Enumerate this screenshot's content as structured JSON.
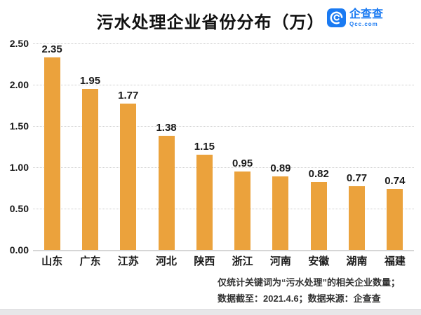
{
  "header": {
    "title": "污水处理企业省份分布（万）",
    "logo": {
      "name": "企查查",
      "domain": "Qcc.com"
    }
  },
  "chart_data": {
    "type": "bar",
    "title": "污水处理企业省份分布（万）",
    "categories": [
      "山东",
      "广东",
      "江苏",
      "河北",
      "陕西",
      "浙江",
      "河南",
      "安徽",
      "湖南",
      "福建"
    ],
    "values": [
      2.35,
      1.95,
      1.77,
      1.38,
      1.15,
      0.95,
      0.89,
      0.82,
      0.77,
      0.74
    ],
    "value_labels": [
      "2.35",
      "1.95",
      "1.77",
      "1.38",
      "1.15",
      "0.95",
      "0.89",
      "0.82",
      "0.77",
      "0.74"
    ],
    "xlabel": "",
    "ylabel": "",
    "ylim": [
      0,
      2.5
    ],
    "ytick_values": [
      0,
      0.5,
      1,
      1.5,
      2,
      2.5
    ],
    "yticks": [
      "0.00",
      "0.50",
      "1.00",
      "1.50",
      "2.00",
      "2.50"
    ],
    "grid": "horizontal-dotted",
    "legend": "none",
    "bar_color": "#EBA23C"
  },
  "footer": {
    "line1": "仅统计关键词为“污水处理”的相关企业数量；",
    "line2": "数据截至：2021.4.6；数据来源：企查查"
  },
  "colors": {
    "bar": "#EBA23C",
    "logo_blue": "#1A7AF2",
    "grid": "#CCCCCC",
    "axis_line": "#D6D6D6",
    "text": "#1A1A1A",
    "bottom_strip": "#E7E7E9"
  }
}
